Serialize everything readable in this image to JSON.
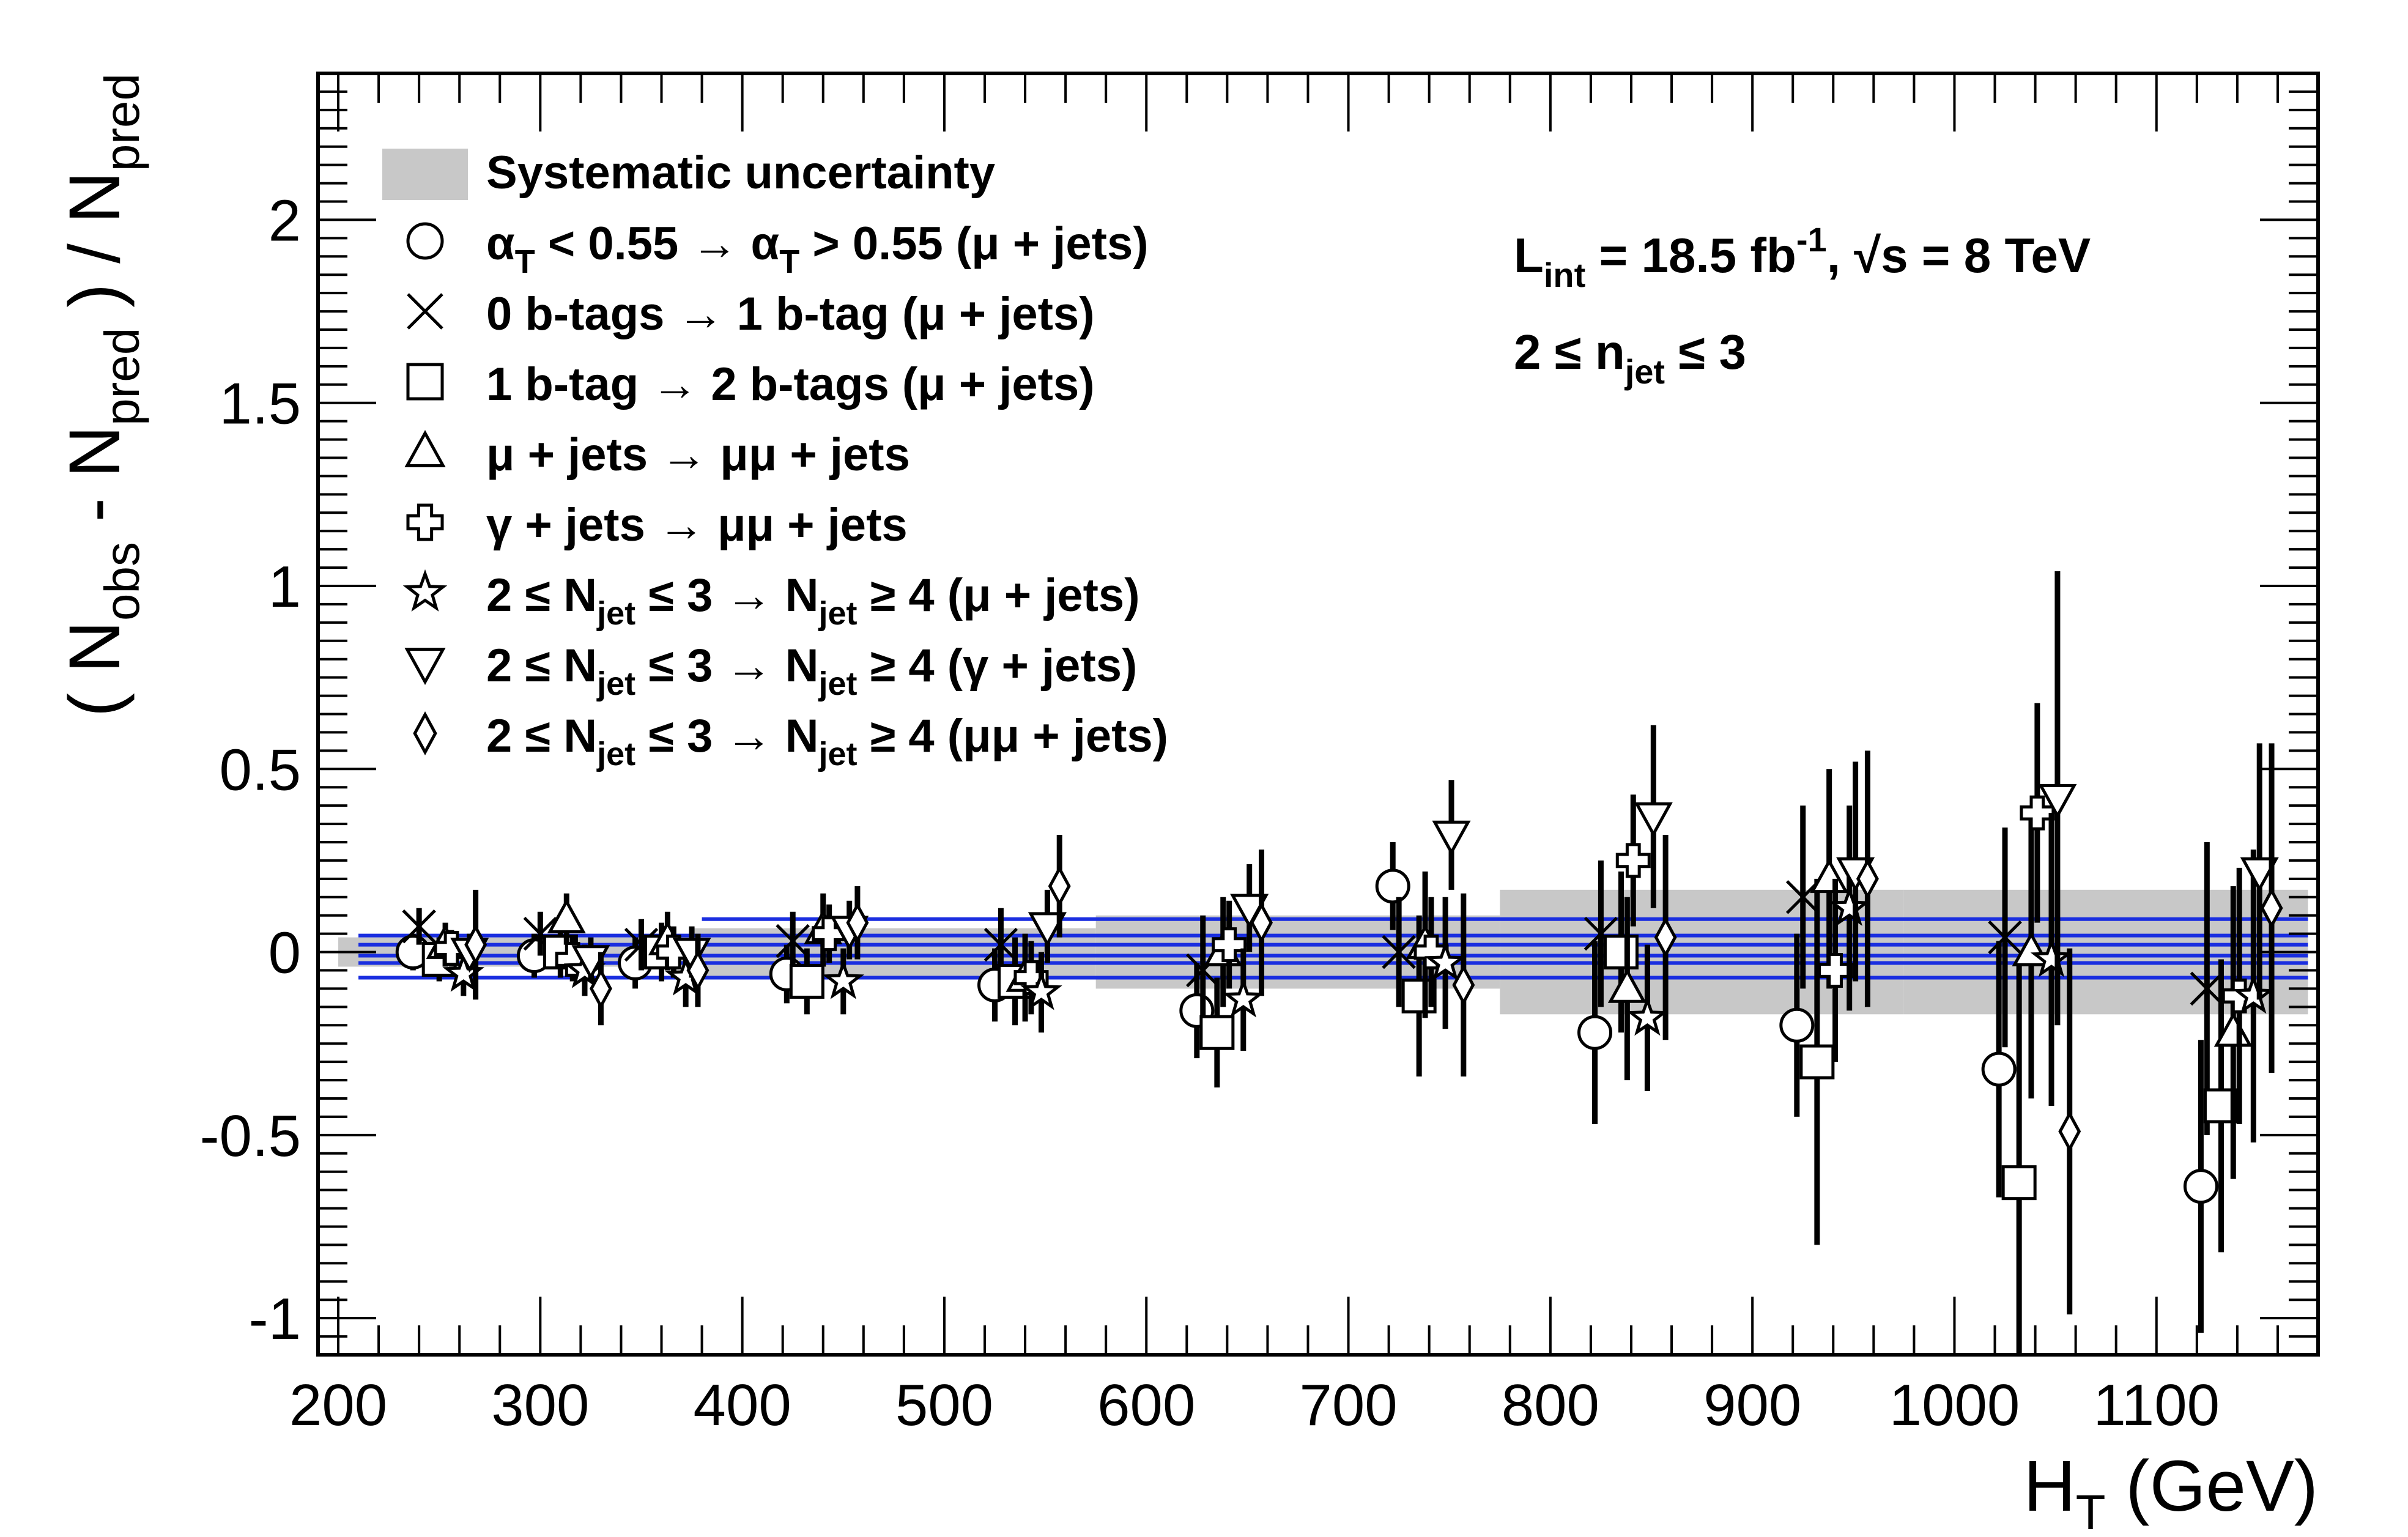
{
  "chart_data": {
    "type": "scatter",
    "title": "",
    "xlabel_main": "H",
    "xlabel_sub": "T",
    "xlabel_unit": " (GeV)",
    "ylabel_parts": {
      "open": "( N",
      "obs": "obs",
      "minus": " - N",
      "pred1": "pred",
      "close": " ) / N",
      "pred2": "pred"
    },
    "xlim": [
      190,
      1180
    ],
    "ylim": [
      -1.1,
      2.4
    ],
    "x_ticks": [
      200,
      300,
      400,
      500,
      600,
      700,
      800,
      900,
      1000,
      1100
    ],
    "x_tick_labels": [
      "200",
      "300",
      "400",
      "500",
      "600",
      "700",
      "800",
      "900",
      "1000",
      "1100"
    ],
    "y_ticks": [
      -1,
      -0.5,
      0,
      0.5,
      1,
      1.5,
      2
    ],
    "y_tick_labels": [
      "-1",
      "-0.5",
      "0",
      "0.5",
      "1",
      "1.5",
      "2"
    ],
    "grid": false,
    "legend_position": "top-left",
    "systematic_band": {
      "name": "Systematic uncertainty",
      "color": "#c8c8c8",
      "bins": [
        {
          "x0": 200,
          "x1": 375,
          "half": 0.04
        },
        {
          "x0": 375,
          "x1": 575,
          "half": 0.065
        },
        {
          "x0": 575,
          "x1": 775,
          "half": 0.1
        },
        {
          "x0": 775,
          "x1": 975,
          "half": 0.17
        },
        {
          "x0": 975,
          "x1": 1175,
          "half": 0.17
        }
      ]
    },
    "fit_lines": {
      "color": "#1a2ee0",
      "segments": [
        {
          "x0": 210,
          "x1": 1175,
          "y": 0.045
        },
        {
          "x0": 210,
          "x1": 1175,
          "y": 0.02
        },
        {
          "x0": 210,
          "x1": 1175,
          "y": -0.01
        },
        {
          "x0": 210,
          "x1": 1175,
          "y": -0.03
        },
        {
          "x0": 210,
          "x1": 1175,
          "y": -0.07
        },
        {
          "x0": 380,
          "x1": 1175,
          "y": 0.09
        }
      ]
    },
    "series": [
      {
        "name": "αT < 0.55 → αT > 0.55 (μ + jets)",
        "marker": "circle",
        "points": [
          [
            237,
            0.0,
            0.05
          ],
          [
            297,
            -0.01,
            0.06
          ],
          [
            347,
            -0.03,
            0.07
          ],
          [
            422,
            -0.06,
            0.08
          ],
          [
            525,
            -0.09,
            0.1
          ],
          [
            625,
            -0.16,
            0.13
          ],
          [
            722,
            0.18,
            0.12
          ],
          [
            822,
            -0.22,
            0.25
          ],
          [
            922,
            -0.2,
            0.25
          ],
          [
            1022,
            -0.32,
            0.35
          ],
          [
            1122,
            -0.64,
            0.4
          ]
        ]
      },
      {
        "name": "0 b-tags → 1 b-tag (μ + jets)",
        "marker": "x",
        "points": [
          [
            240,
            0.07,
            0.05
          ],
          [
            300,
            0.05,
            0.06
          ],
          [
            350,
            0.02,
            0.07
          ],
          [
            425,
            0.03,
            0.08
          ],
          [
            528,
            0.02,
            0.1
          ],
          [
            628,
            -0.05,
            0.15
          ],
          [
            725,
            0.0,
            0.15
          ],
          [
            825,
            0.05,
            0.2
          ],
          [
            925,
            0.15,
            0.25
          ],
          [
            1025,
            0.04,
            0.3
          ],
          [
            1125,
            -0.1,
            0.4
          ]
        ]
      },
      {
        "name": "1 b-tag → 2 b-tags (μ + jets)",
        "marker": "square",
        "points": [
          [
            250,
            -0.02,
            0.06
          ],
          [
            310,
            0.0,
            0.07
          ],
          [
            360,
            0.0,
            0.08
          ],
          [
            432,
            -0.08,
            0.09
          ],
          [
            535,
            -0.08,
            0.12
          ],
          [
            635,
            -0.22,
            0.15
          ],
          [
            735,
            -0.12,
            0.22
          ],
          [
            835,
            0.0,
            0.22
          ],
          [
            932,
            -0.3,
            0.5
          ],
          [
            1032,
            -0.63,
            0.6
          ],
          [
            1132,
            -0.42,
            0.4
          ]
        ]
      },
      {
        "name": "μ + jets → μμ + jets",
        "marker": "triangle",
        "points": [
          [
            253,
            0.02,
            0.06
          ],
          [
            313,
            0.09,
            0.07
          ],
          [
            363,
            0.03,
            0.08
          ],
          [
            440,
            0.06,
            0.1
          ],
          [
            540,
            -0.07,
            0.12
          ],
          [
            638,
            0.0,
            0.15
          ],
          [
            738,
            0.02,
            0.2
          ],
          [
            838,
            -0.1,
            0.25
          ],
          [
            938,
            0.2,
            0.3
          ],
          [
            1038,
            0.0,
            0.4
          ],
          [
            1138,
            -0.22,
            0.4
          ]
        ]
      },
      {
        "name": "γ + jets → μμ + jets",
        "marker": "cross",
        "points": [
          [
            256,
            0.01,
            0.05
          ],
          [
            316,
            -0.02,
            0.06
          ],
          [
            366,
            0.0,
            0.07
          ],
          [
            443,
            0.05,
            0.08
          ],
          [
            543,
            -0.07,
            0.1
          ],
          [
            641,
            0.02,
            0.12
          ],
          [
            741,
            0.0,
            0.15
          ],
          [
            841,
            0.25,
            0.18
          ],
          [
            941,
            -0.05,
            0.25
          ],
          [
            1041,
            0.38,
            0.3
          ],
          [
            1141,
            -0.12,
            0.35
          ]
        ]
      },
      {
        "name": "2 ≤ Njet ≤ 3 → Njet ≥ 4 (μ + jets)",
        "marker": "star",
        "points": [
          [
            262,
            -0.06,
            0.06
          ],
          [
            322,
            -0.05,
            0.07
          ],
          [
            372,
            -0.07,
            0.08
          ],
          [
            450,
            -0.08,
            0.09
          ],
          [
            548,
            -0.11,
            0.11
          ],
          [
            648,
            -0.13,
            0.14
          ],
          [
            748,
            -0.03,
            0.18
          ],
          [
            848,
            -0.18,
            0.2
          ],
          [
            948,
            0.12,
            0.28
          ],
          [
            1048,
            -0.02,
            0.4
          ],
          [
            1148,
            -0.12,
            0.4
          ]
        ]
      },
      {
        "name": "2 ≤ Njet ≤ 3 → Njet ≥ 4 (γ + jets)",
        "marker": "triangle-down",
        "points": [
          [
            265,
            0.0,
            0.05
          ],
          [
            325,
            -0.02,
            0.06
          ],
          [
            375,
            0.0,
            0.07
          ],
          [
            453,
            0.06,
            0.08
          ],
          [
            551,
            0.07,
            0.1
          ],
          [
            651,
            0.12,
            0.12
          ],
          [
            751,
            0.32,
            0.15
          ],
          [
            851,
            0.37,
            0.25
          ],
          [
            951,
            0.22,
            0.3
          ],
          [
            1051,
            0.42,
            0.62
          ],
          [
            1151,
            0.22,
            0.35
          ]
        ]
      },
      {
        "name": "2 ≤ Njet ≤ 3 → Njet ≥ 4 (μμ + jets)",
        "marker": "diamond",
        "points": [
          [
            268,
            0.02,
            0.15
          ],
          [
            330,
            -0.1,
            0.1
          ],
          [
            378,
            -0.05,
            0.1
          ],
          [
            457,
            0.08,
            0.1
          ],
          [
            557,
            0.18,
            0.14
          ],
          [
            657,
            0.08,
            0.2
          ],
          [
            757,
            -0.09,
            0.25
          ],
          [
            857,
            0.04,
            0.28
          ],
          [
            957,
            0.2,
            0.35
          ],
          [
            1057,
            -0.49,
            0.5
          ],
          [
            1157,
            0.12,
            0.45
          ]
        ]
      }
    ],
    "annotations": {
      "lumi": {
        "L": "L",
        "int": "int",
        "value": " = 18.5 fb",
        "exp": "-1",
        "sqrt_part": ",  √s = 8 TeV"
      },
      "njet": {
        "lead": "2  ≤ n",
        "sub": "jet",
        "tail": "  ≤ 3"
      }
    }
  },
  "legend": {
    "band_label": "Systematic uncertainty",
    "items": [
      {
        "marker": "circle",
        "parts": [
          {
            "t": "α"
          },
          {
            "t": "T",
            "sub": true
          },
          {
            "t": " < 0.55  →  α"
          },
          {
            "t": "T",
            "sub": true
          },
          {
            "t": " > 0.55 (μ + jets)"
          }
        ]
      },
      {
        "marker": "x",
        "parts": [
          {
            "t": "0 b-tags  → 1 b-tag (μ + jets)"
          }
        ]
      },
      {
        "marker": "square",
        "parts": [
          {
            "t": "1 b-tag  → 2 b-tags (μ + jets)"
          }
        ]
      },
      {
        "marker": "triangle",
        "parts": [
          {
            "t": "μ + jets  →  μμ + jets"
          }
        ]
      },
      {
        "marker": "cross",
        "parts": [
          {
            "t": "γ + jets  →  μμ + jets"
          }
        ]
      },
      {
        "marker": "star",
        "parts": [
          {
            "t": "2  ≤ N"
          },
          {
            "t": "jet",
            "sub": true
          },
          {
            "t": "  ≤ 3  →  N"
          },
          {
            "t": "jet",
            "sub": true
          },
          {
            "t": "  ≥ 4 (μ + jets)"
          }
        ]
      },
      {
        "marker": "triangle-down",
        "parts": [
          {
            "t": "2  ≤ N"
          },
          {
            "t": "jet",
            "sub": true
          },
          {
            "t": "  ≤ 3  →  N"
          },
          {
            "t": "jet",
            "sub": true
          },
          {
            "t": "  ≥ 4 (γ + jets)"
          }
        ]
      },
      {
        "marker": "diamond",
        "parts": [
          {
            "t": "2  ≤ N"
          },
          {
            "t": "jet",
            "sub": true
          },
          {
            "t": "  ≤ 3  →  N"
          },
          {
            "t": "jet",
            "sub": true
          },
          {
            "t": "  ≥ 4 (μμ + jets)"
          }
        ]
      }
    ]
  }
}
